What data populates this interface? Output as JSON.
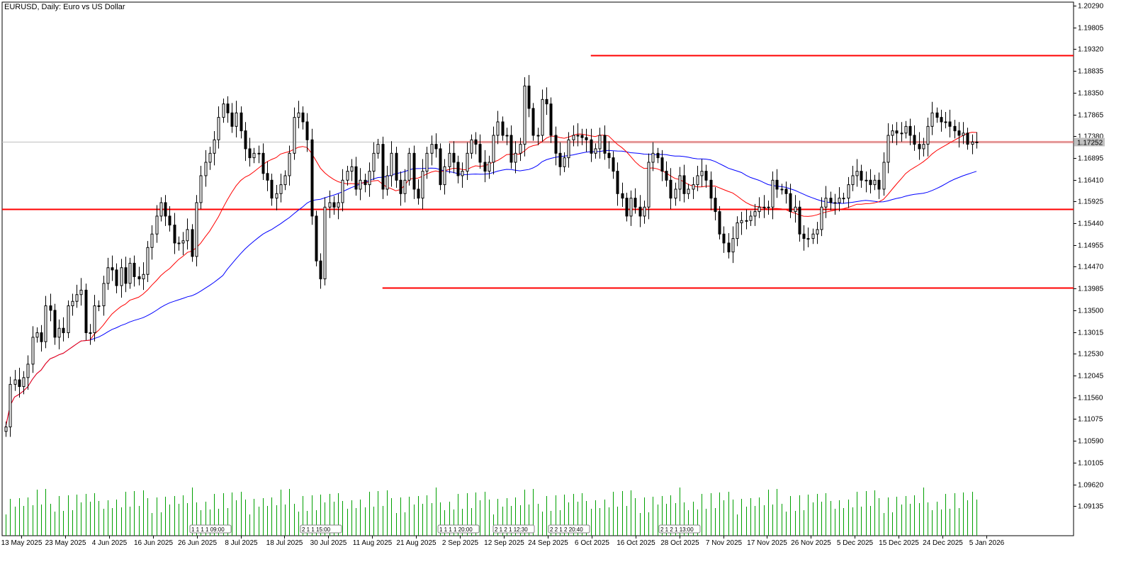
{
  "chart_data": {
    "type": "candlestick",
    "title": "EURUSD, Daily:  Euro vs US Dollar",
    "symbol": "EURUSD",
    "timeframe": "Daily",
    "description": "Euro vs US Dollar",
    "ylim": [
      1.0895,
      1.2029
    ],
    "y_ticks": [
      1.2029,
      1.198,
      1.1932,
      1.18835,
      1.1835,
      1.17865,
      1.1738,
      1.16895,
      1.1641,
      1.15925,
      1.1544,
      1.14955,
      1.1447,
      1.13985,
      1.135,
      1.13015,
      1.1253,
      1.12045,
      1.1156,
      1.11075,
      1.1059,
      1.10105,
      1.0962,
      1.09135
    ],
    "y_tick_labels": [
      "1.20290",
      "1.19805",
      "1.19320",
      "1.18835",
      "1.18350",
      "1.17865",
      "1.17380",
      "1.16895",
      "1.16410",
      "1.15925",
      "1.15440",
      "1.14955",
      "1.14470",
      "1.13985",
      "1.13500",
      "1.13015",
      "1.12530",
      "1.12045",
      "1.11560",
      "1.11075",
      "1.10590",
      "1.10105",
      "1.09620",
      "1.09135"
    ],
    "x_labels": [
      "13 May 2025",
      "23 May 2025",
      "4 Jun 2025",
      "16 Jun 2025",
      "26 Jun 2025",
      "8 Jul 2025",
      "18 Jul 2025",
      "30 Jul 2025",
      "11 Aug 2025",
      "21 Aug 2025",
      "2 Sep 2025",
      "12 Sep 2025",
      "24 Sep 2025",
      "6 Oct 2025",
      "16 Oct 2025",
      "28 Oct 2025",
      "7 Nov 2025",
      "17 Nov 2025",
      "26 Nov 2025",
      "5 Dec 2025",
      "15 Dec 2025",
      "24 Dec 2025",
      "5 Jan 2026"
    ],
    "current_price": 1.17252,
    "current_price_label": "1.17252",
    "horizontal_levels": [
      1.1918,
      1.1725,
      1.1575,
      1.14
    ],
    "ohlc_close": [
      1.109,
      1.1185,
      1.1195,
      1.118,
      1.12,
      1.123,
      1.129,
      1.13,
      1.128,
      1.136,
      1.135,
      1.129,
      1.131,
      1.13,
      1.136,
      1.137,
      1.1385,
      1.1395,
      1.13,
      1.13,
      1.136,
      1.136,
      1.141,
      1.1445,
      1.144,
      1.1405,
      1.1445,
      1.141,
      1.1455,
      1.1425,
      1.142,
      1.143,
      1.149,
      1.152,
      1.156,
      1.159,
      1.156,
      1.154,
      1.15,
      1.15,
      1.1505,
      1.153,
      1.147,
      1.159,
      1.165,
      1.168,
      1.17,
      1.173,
      1.178,
      1.181,
      1.179,
      1.176,
      1.179,
      1.175,
      1.171,
      1.169,
      1.17,
      1.17,
      1.1655,
      1.164,
      1.16,
      1.161,
      1.163,
      1.165,
      1.17,
      1.178,
      1.179,
      1.177,
      1.173,
      1.156,
      1.146,
      1.142,
      1.158,
      1.159,
      1.158,
      1.159,
      1.164,
      1.166,
      1.167,
      1.162,
      1.164,
      1.163,
      1.166,
      1.17,
      1.172,
      1.162,
      1.165,
      1.17,
      1.164,
      1.161,
      1.164,
      1.17,
      1.162,
      1.16,
      1.166,
      1.17,
      1.172,
      1.171,
      1.163,
      1.167,
      1.17,
      1.168,
      1.165,
      1.166,
      1.17,
      1.173,
      1.172,
      1.168,
      1.166,
      1.168,
      1.174,
      1.177,
      1.174,
      1.174,
      1.168,
      1.17,
      1.172,
      1.185,
      1.18,
      1.174,
      1.174,
      1.182,
      1.181,
      1.174,
      1.17,
      1.167,
      1.169,
      1.173,
      1.174,
      1.174,
      1.1735,
      1.173,
      1.17,
      1.171,
      1.174,
      1.17,
      1.169,
      1.166,
      1.161,
      1.16,
      1.156,
      1.16,
      1.158,
      1.156,
      1.158,
      1.168,
      1.17,
      1.169,
      1.166,
      1.164,
      1.16,
      1.162,
      1.165,
      1.161,
      1.162,
      1.163,
      1.165,
      1.166,
      1.164,
      1.16,
      1.157,
      1.152,
      1.15,
      1.148,
      1.151,
      1.1545,
      1.155,
      1.155,
      1.156,
      1.157,
      1.158,
      1.158,
      1.158,
      1.164,
      1.162,
      1.162,
      1.161,
      1.157,
      1.158,
      1.152,
      1.151,
      1.151,
      1.152,
      1.153,
      1.158,
      1.16,
      1.159,
      1.159,
      1.16,
      1.16,
      1.163,
      1.165,
      1.166,
      1.164,
      1.164,
      1.163,
      1.164,
      1.162,
      1.168,
      1.174,
      1.175,
      1.1745,
      1.1745,
      1.176,
      1.174,
      1.172,
      1.171,
      1.172,
      1.176,
      1.179,
      1.178,
      1.177,
      1.177,
      1.176,
      1.175,
      1.174,
      1.1745,
      1.172,
      1.1725,
      1.1725
    ]
  },
  "chart_labels": {
    "event_markers": [
      {
        "label": "1 1 1 1 09:00"
      },
      {
        "label": "2 1 1 15:00"
      },
      {
        "label": "1 1 1 1 20:00"
      },
      {
        "label": "2 1 2 1 12:30"
      },
      {
        "label": "2 2 1 2 20:40"
      },
      {
        "label": "2 1 2 1 13:00"
      }
    ]
  },
  "colors": {
    "background": "#ffffff",
    "bull_candle": "#ffffff",
    "bear_candle": "#000000",
    "ma_fast": "#ff0000",
    "ma_slow": "#0000ff",
    "levels": "#ff0000",
    "volume": "#00a000",
    "price_line": "#c0c0c0"
  }
}
